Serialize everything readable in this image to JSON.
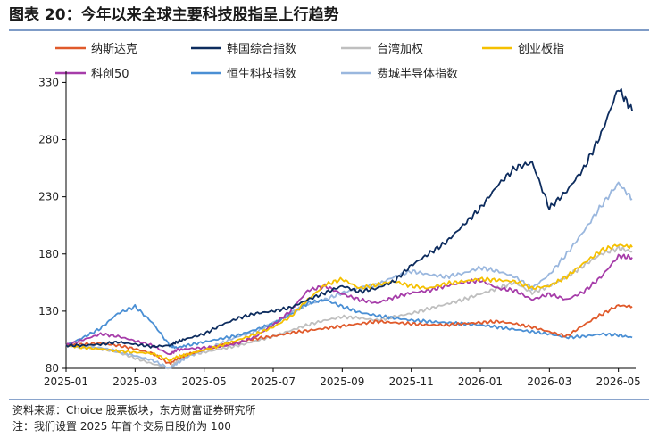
{
  "title": "图表 20：今年以来全球主要科技股指呈上行趋势",
  "source": "资料来源：Choice 股票板块，东方财富证券研究所",
  "note": "注：我们设置 2025 年首个交易日股价为 100",
  "chart_data": {
    "type": "line",
    "title": "",
    "xlabel": "",
    "ylabel": "",
    "ylim": [
      80,
      335
    ],
    "yticks": [
      80,
      130,
      180,
      230,
      280,
      330
    ],
    "xticks": [
      "2025-01",
      "2025-03",
      "2025-05",
      "2025-07",
      "2025-09",
      "2025-11",
      "2026-01",
      "2026-03",
      "2026-05"
    ],
    "legend_position": "top",
    "grid": false,
    "x_months": [
      0,
      0.5,
      1,
      1.5,
      2,
      2.5,
      3,
      3.2,
      3.5,
      4,
      4.5,
      5,
      5.5,
      6,
      6.5,
      7,
      7.5,
      8,
      8.5,
      9,
      9.5,
      10,
      10.5,
      11,
      11.5,
      12,
      12.5,
      13,
      13.5,
      14,
      14.5,
      15,
      15.5,
      16,
      16.4
    ],
    "series": [
      {
        "name": "纳斯达克",
        "color": "#e05a2b",
        "values": [
          100,
          101,
          102,
          100,
          97,
          93,
          84,
          88,
          92,
          96,
          100,
          103,
          106,
          108,
          111,
          113,
          115,
          117,
          119,
          121,
          120,
          119,
          118,
          118,
          119,
          120,
          121,
          119,
          116,
          112,
          108,
          118,
          127,
          135,
          134
        ]
      },
      {
        "name": "韩国综合指数",
        "color": "#0d2c5e",
        "values": [
          100,
          100,
          101,
          103,
          101,
          99,
          100,
          103,
          106,
          110,
          118,
          124,
          128,
          130,
          133,
          140,
          146,
          152,
          147,
          150,
          156,
          170,
          180,
          190,
          205,
          220,
          240,
          255,
          260,
          220,
          235,
          255,
          285,
          325,
          305
        ]
      },
      {
        "name": "台湾加权",
        "color": "#bfbfbf",
        "values": [
          100,
          99,
          97,
          94,
          89,
          84,
          80,
          86,
          91,
          94,
          97,
          100,
          104,
          108,
          113,
          118,
          122,
          125,
          124,
          122,
          125,
          128,
          132,
          136,
          140,
          145,
          150,
          155,
          146,
          152,
          160,
          170,
          180,
          185,
          182
        ]
      },
      {
        "name": "创业板指",
        "color": "#f5c000",
        "values": [
          100,
          98,
          97,
          95,
          94,
          93,
          87,
          90,
          92,
          96,
          100,
          105,
          110,
          116,
          125,
          140,
          153,
          158,
          150,
          153,
          156,
          152,
          150,
          154,
          156,
          158,
          157,
          156,
          150,
          152,
          160,
          172,
          183,
          188,
          186
        ]
      },
      {
        "name": "科创50",
        "color": "#a63ca9",
        "values": [
          100,
          105,
          110,
          108,
          104,
          100,
          92,
          96,
          97,
          98,
          99,
          102,
          108,
          118,
          130,
          148,
          152,
          145,
          140,
          137,
          142,
          146,
          148,
          152,
          155,
          157,
          150,
          148,
          140,
          145,
          140,
          147,
          160,
          178,
          177
        ]
      },
      {
        "name": "恒生科技指数",
        "color": "#4a8fd4",
        "values": [
          100,
          107,
          115,
          128,
          134,
          120,
          100,
          98,
          100,
          103,
          106,
          109,
          114,
          119,
          127,
          137,
          140,
          134,
          129,
          126,
          124,
          122,
          121,
          120,
          119,
          118,
          116,
          114,
          112,
          110,
          107,
          108,
          110,
          109,
          107
        ]
      },
      {
        "name": "费城半导体指数",
        "color": "#9ab7de",
        "values": [
          100,
          99,
          98,
          95,
          91,
          87,
          80,
          84,
          90,
          96,
          102,
          108,
          112,
          120,
          128,
          136,
          140,
          146,
          150,
          153,
          160,
          165,
          162,
          160,
          163,
          168,
          165,
          160,
          150,
          162,
          180,
          200,
          222,
          242,
          228
        ]
      }
    ]
  }
}
